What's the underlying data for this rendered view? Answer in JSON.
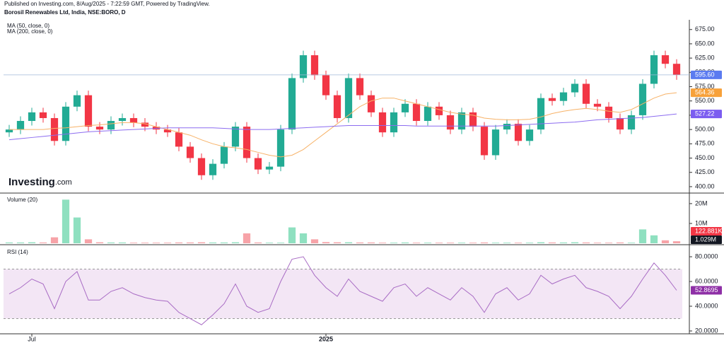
{
  "header": {
    "published": "Published on Investing.com, 8/Aug/2025 - 7:22:59 GMT, Powered by TradingView.",
    "symbol": "Borosil Renewables Ltd, India, NSE:BORO, D",
    "logo_main": "Investing",
    "logo_suffix": ".com"
  },
  "chart_data": [
    {
      "type": "candlestick",
      "up_color": "#22ab94",
      "down_color": "#f23645",
      "open": [
        495,
        500,
        515,
        530,
        520,
        480,
        540,
        560,
        505,
        500,
        515,
        520,
        512,
        505,
        500,
        495,
        470,
        450,
        420,
        440,
        470,
        505,
        450,
        430,
        435,
        500,
        590,
        630,
        595,
        560,
        520,
        590,
        560,
        530,
        495,
        530,
        545,
        515,
        540,
        525,
        500,
        530,
        505,
        455,
        500,
        510,
        480,
        500,
        555,
        550,
        565,
        580,
        545,
        540,
        520,
        500,
        525,
        580,
        630,
        615
      ],
      "high": [
        508,
        523,
        538,
        538,
        528,
        548,
        568,
        568,
        513,
        523,
        528,
        528,
        520,
        513,
        508,
        503,
        478,
        458,
        448,
        478,
        513,
        513,
        458,
        443,
        508,
        598,
        638,
        638,
        603,
        568,
        598,
        598,
        568,
        538,
        538,
        553,
        553,
        548,
        548,
        533,
        538,
        538,
        513,
        508,
        518,
        518,
        508,
        563,
        563,
        573,
        588,
        588,
        553,
        548,
        528,
        533,
        588,
        638,
        638,
        623
      ],
      "low": [
        487,
        492,
        507,
        512,
        472,
        472,
        532,
        497,
        492,
        492,
        507,
        504,
        497,
        492,
        487,
        462,
        442,
        412,
        412,
        432,
        462,
        442,
        422,
        422,
        427,
        492,
        582,
        587,
        552,
        512,
        512,
        552,
        522,
        487,
        487,
        522,
        507,
        507,
        517,
        492,
        492,
        497,
        447,
        447,
        492,
        472,
        472,
        492,
        542,
        542,
        557,
        537,
        532,
        512,
        492,
        492,
        517,
        572,
        607,
        587
      ],
      "close": [
        500,
        515,
        530,
        520,
        480,
        540,
        560,
        505,
        500,
        515,
        520,
        512,
        505,
        500,
        495,
        470,
        450,
        420,
        440,
        470,
        505,
        450,
        430,
        435,
        500,
        590,
        630,
        595,
        560,
        520,
        590,
        560,
        530,
        495,
        530,
        545,
        515,
        540,
        525,
        500,
        530,
        505,
        455,
        500,
        510,
        480,
        500,
        555,
        550,
        565,
        580,
        545,
        540,
        520,
        500,
        525,
        580,
        630,
        615,
        595.6
      ],
      "series": [
        {
          "name": "MA (50, close, 0)",
          "color": "#f7b267",
          "values": [
            500,
            500,
            500,
            500,
            502,
            503,
            505,
            507,
            508,
            510,
            512,
            512,
            510,
            505,
            500,
            495,
            490,
            482,
            475,
            470,
            468,
            465,
            460,
            455,
            452,
            455,
            465,
            480,
            495,
            510,
            525,
            540,
            550,
            555,
            555,
            550,
            545,
            540,
            535,
            530,
            527,
            525,
            520,
            518,
            517,
            517,
            518,
            522,
            528,
            532,
            535,
            537,
            535,
            532,
            530,
            535,
            545,
            555,
            562,
            564.36
          ]
        },
        {
          "name": "MA (200, close, 0)",
          "color": "#8c6cf0",
          "values": [
            482,
            484,
            486,
            488,
            490,
            492,
            494,
            496,
            497,
            498,
            499,
            500,
            501,
            502,
            503,
            503,
            503,
            503,
            503,
            502,
            501,
            500,
            500,
            500,
            501,
            502,
            503,
            504,
            505,
            506,
            507,
            507,
            507,
            507,
            507,
            507,
            506,
            506,
            506,
            506,
            506,
            506,
            506,
            506,
            507,
            508,
            509,
            510,
            511,
            512,
            513,
            515,
            517,
            518,
            519,
            520,
            521,
            523,
            525,
            527.22
          ]
        }
      ],
      "markers": [
        {
          "value": 595.6,
          "label": "595.60",
          "color": "#5b7bf0"
        },
        {
          "value": 564.36,
          "label": "564.36",
          "color": "#f7a13a"
        },
        {
          "value": 527.22,
          "label": "527.22",
          "color": "#7b5cf0"
        }
      ],
      "ylim": [
        390,
        692
      ],
      "yticks": [
        {
          "value": 400,
          "label": "400.00"
        },
        {
          "value": 425,
          "label": "425.00"
        },
        {
          "value": 450,
          "label": "450.00"
        },
        {
          "value": 475,
          "label": "475.00"
        },
        {
          "value": 500,
          "label": "500.00"
        },
        {
          "value": 525,
          "label": "525.00"
        },
        {
          "value": 550,
          "label": "550.00"
        },
        {
          "value": 575,
          "label": "575.00"
        },
        {
          "value": 600,
          "label": "600.00"
        },
        {
          "value": 625,
          "label": "625.00"
        },
        {
          "value": 650,
          "label": "650.00"
        },
        {
          "value": 675,
          "label": "675.00"
        }
      ]
    },
    {
      "type": "bar",
      "title": "Volume (20)",
      "up_color": "#8fe0c0",
      "down_color": "#f7a3a8",
      "values": [
        400000,
        400000,
        500000,
        400000,
        3000000,
        22000000,
        13000000,
        2000000,
        500000,
        400000,
        400000,
        300000,
        300000,
        300000,
        300000,
        400000,
        400000,
        500000,
        400000,
        400000,
        500000,
        5000000,
        400000,
        300000,
        300000,
        8000000,
        5000000,
        2000000,
        600000,
        500000,
        500000,
        400000,
        400000,
        300000,
        300000,
        400000,
        300000,
        300000,
        300000,
        300000,
        300000,
        300000,
        400000,
        300000,
        300000,
        300000,
        300000,
        500000,
        400000,
        400000,
        500000,
        400000,
        300000,
        300000,
        400000,
        300000,
        7000000,
        4000000,
        1500000,
        1029000
      ],
      "markers": [
        {
          "value": 1029000,
          "label": "1.029M",
          "color": "#131722"
        },
        {
          "value": 122881,
          "label": "122.881K",
          "color": "#f23645"
        }
      ],
      "ylim": [
        0,
        24600000
      ],
      "yticks": [
        {
          "value": 10000000,
          "label": "10M"
        },
        {
          "value": 20000000,
          "label": "20M"
        }
      ]
    },
    {
      "type": "line",
      "title": "RSI (14)",
      "color": "#a86bc4",
      "band": [
        30,
        70
      ],
      "band_color": "#f3e6f5",
      "categories": [
        null,
        null,
        "Jul",
        null,
        null,
        null,
        null,
        null,
        null,
        null,
        null,
        null,
        null,
        null,
        null,
        null,
        null,
        null,
        null,
        null,
        null,
        null,
        null,
        null,
        null,
        null,
        null,
        null,
        "2025",
        null,
        null,
        null,
        null,
        null,
        null,
        null,
        null,
        null,
        null,
        null,
        null,
        null,
        null,
        null,
        null,
        null,
        null,
        null,
        null,
        null,
        null,
        null,
        null,
        null,
        null,
        null,
        null,
        null,
        null,
        null
      ],
      "values": [
        50,
        55,
        62,
        58,
        38,
        60,
        68,
        45,
        45,
        52,
        55,
        50,
        47,
        45,
        44,
        35,
        30,
        25,
        33,
        42,
        58,
        40,
        35,
        38,
        60,
        78,
        80,
        65,
        55,
        48,
        62,
        52,
        48,
        44,
        55,
        58,
        48,
        55,
        50,
        45,
        55,
        48,
        35,
        50,
        55,
        45,
        50,
        65,
        58,
        62,
        65,
        55,
        52,
        48,
        38,
        48,
        62,
        75,
        65,
        52.8695
      ],
      "markers": [
        {
          "value": 52.8695,
          "label": "52.8695",
          "color": "#8e2fa6"
        }
      ],
      "ylim": [
        17.7,
        88.6
      ],
      "yticks": [
        {
          "value": 20,
          "label": "20.0000"
        },
        {
          "value": 40,
          "label": "40.0000"
        },
        {
          "value": 60,
          "label": "60.0000"
        },
        {
          "value": 80,
          "label": "80.0000"
        }
      ]
    }
  ]
}
